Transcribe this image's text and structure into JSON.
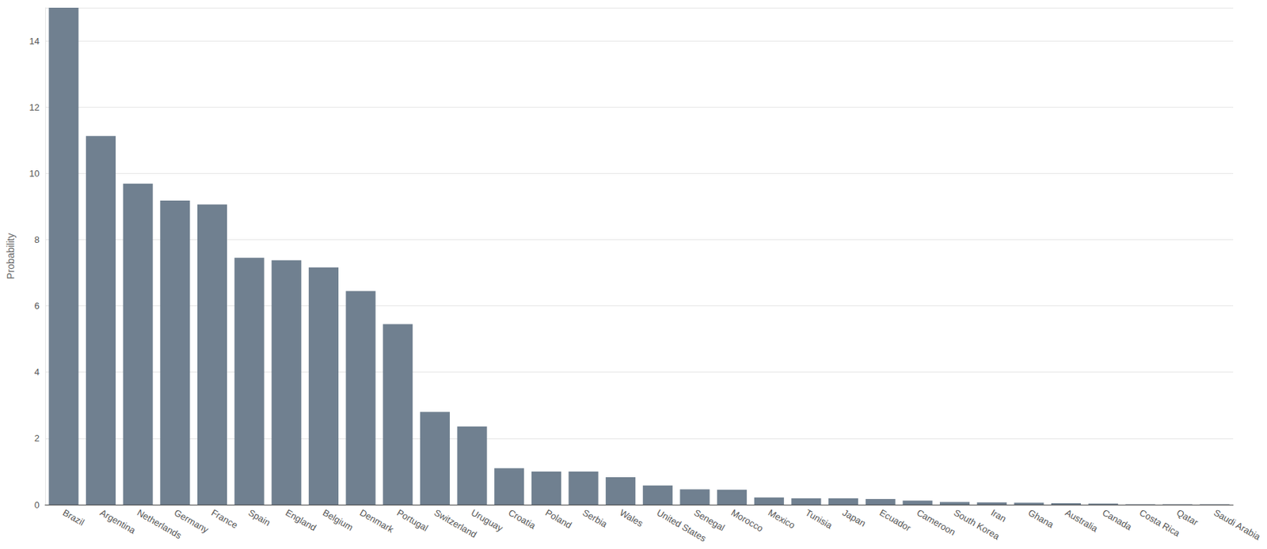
{
  "chart_data": {
    "type": "bar",
    "y_label": "Probability",
    "categories": [
      "Brazil",
      "Argentina",
      "Netherlands",
      "Germany",
      "France",
      "Spain",
      "England",
      "Belgium",
      "Denmark",
      "Portugal",
      "Switzerland",
      "Uruguay",
      "Croatia",
      "Poland",
      "Serbia",
      "Wales",
      "United States",
      "Senegal",
      "Morocco",
      "Mexico",
      "Tunisia",
      "Japan",
      "Ecuador",
      "Cameroon",
      "South Korea",
      "Iran",
      "Ghana",
      "Australia",
      "Canada",
      "Costa Rica",
      "Qatar",
      "Saudi Arabia"
    ],
    "values": [
      15.0,
      11.13,
      9.69,
      9.18,
      9.06,
      7.45,
      7.38,
      7.16,
      6.45,
      5.45,
      2.8,
      2.36,
      1.1,
      1.0,
      1.0,
      0.83,
      0.58,
      0.46,
      0.45,
      0.22,
      0.19,
      0.19,
      0.17,
      0.12,
      0.08,
      0.07,
      0.06,
      0.04,
      0.03,
      0.01,
      0.01,
      0.01
    ],
    "color": "#708090",
    "ylim": [
      0,
      15
    ],
    "yticks": [
      0,
      2,
      4,
      6,
      8,
      10,
      12,
      14
    ],
    "grid": true
  }
}
